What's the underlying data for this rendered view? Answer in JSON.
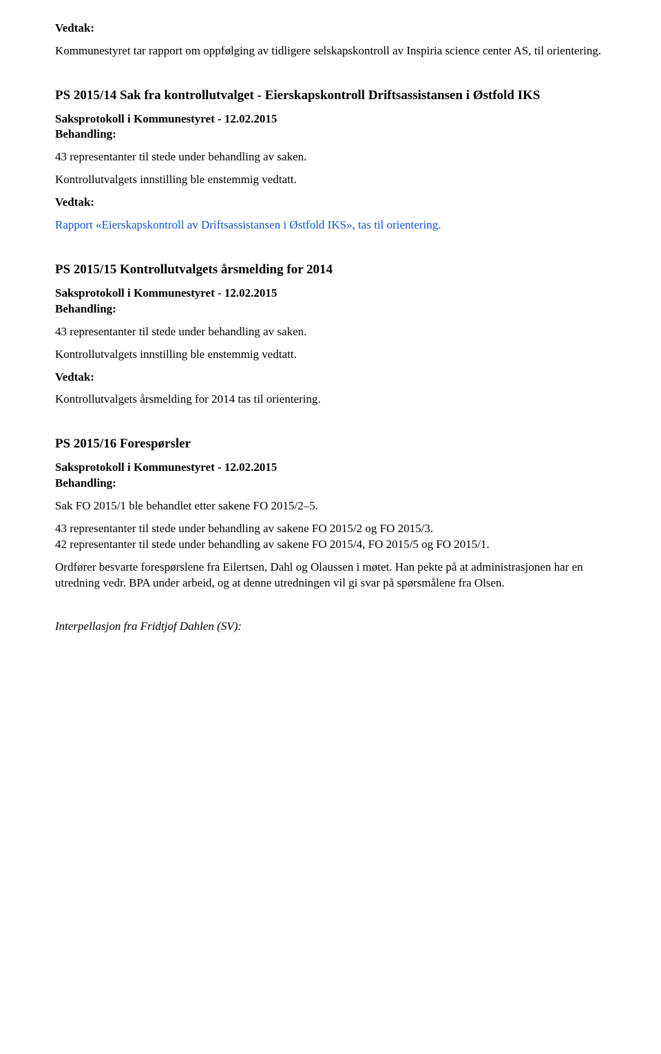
{
  "fonts": {
    "body_family": "Times New Roman",
    "body_size_pt": 13,
    "heading_size_pt": 14
  },
  "colors": {
    "text": "#000000",
    "link_blue": "#1155cc",
    "background": "#ffffff"
  },
  "labels": {
    "vedtak": "Vedtak:",
    "behandling": "Behandling:",
    "saksprotokoll": "Saksprotokoll i Kommunestyret - 12.02.2015",
    "reps_43": "43 representanter til stede under behandling av saken.",
    "kontroll_enst": "Kontrollutvalgets innstilling ble enstemmig vedtatt."
  },
  "section0": {
    "body": "Kommunestyret tar rapport om oppfølging av tidligere selskapskontroll av Inspiria science center AS, til orientering."
  },
  "section14": {
    "heading": "PS 2015/14 Sak fra kontrollutvalget - Eierskapskontroll Driftsassistansen i Østfold IKS",
    "vedtak_body": "Rapport «Eierskapskontroll av Driftsassistansen i Østfold IKS», tas til orientering."
  },
  "section15": {
    "heading": "PS 2015/15 Kontrollutvalgets årsmelding for 2014",
    "vedtak_body": "Kontrollutvalgets årsmelding for 2014 tas til orientering."
  },
  "section16": {
    "heading": "PS 2015/16 Forespørsler",
    "p1": "Sak FO 2015/1 ble behandlet etter sakene FO 2015/2–5.",
    "p2a": "43 representanter til stede under behandling av sakene FO 2015/2 og FO 2015/3.",
    "p2b": "42 representanter til stede under behandling av sakene FO 2015/4, FO 2015/5 og FO 2015/1.",
    "p3": "Ordfører besvarte forespørslene fra Eilertsen, Dahl og Olaussen i møtet. Han pekte på at administrasjonen har en utredning vedr. BPA under arbeid, og at denne utredningen vil gi svar på spørsmålene fra Olsen."
  },
  "footer": {
    "interp": "Interpellasjon fra Fridtjof Dahlen (SV):"
  }
}
